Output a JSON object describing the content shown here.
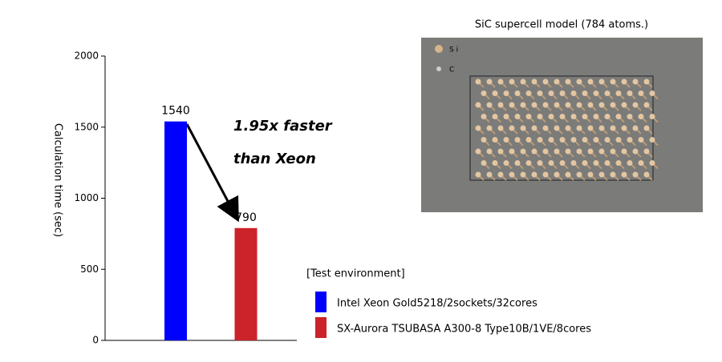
{
  "chart_data": {
    "type": "bar",
    "y_label": "Calculation time (sec)",
    "categories": [
      null,
      null
    ],
    "series": [
      {
        "name": "Intel Xeon Gold5218/2sockets/32cores",
        "color": "#0000ff",
        "values": [
          1540,
          null
        ]
      },
      {
        "name": "SX-Aurora TSUBASA A300-8 Type10B/1VE/8cores",
        "color": "#cc2229",
        "values": [
          null,
          790
        ]
      }
    ],
    "ylim": [
      0,
      2000
    ],
    "yticks": [
      0,
      500,
      1000,
      1500,
      2000
    ],
    "legend_title": "[Test environment]",
    "annotation": [
      "1.95x faster",
      "than Xeon"
    ],
    "model_image": {
      "caption": "SiC supercell model (784 atoms.)",
      "labels": [
        "S i",
        "C"
      ]
    }
  }
}
